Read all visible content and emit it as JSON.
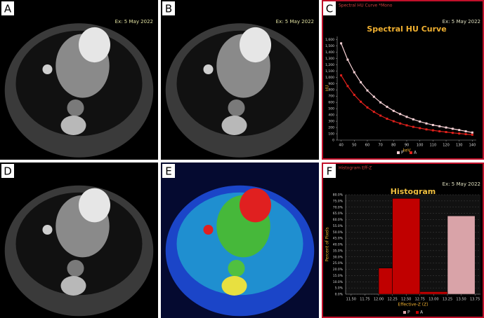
{
  "panels": [
    {
      "label": "A",
      "date": "Ex: 5 May 2022"
    },
    {
      "label": "B",
      "date": "Ex: 5 May 2022"
    },
    {
      "label": "C"
    },
    {
      "label": "D"
    },
    {
      "label": "E"
    },
    {
      "label": "F"
    }
  ],
  "chart_data": [
    {
      "type": "line",
      "header": "Spectral HU Curve *Mono",
      "date": "Ex: 5 May 2022",
      "title": "Spectral HU Curve",
      "x_label": "keV",
      "y_label": "HU",
      "x": [
        40,
        45,
        50,
        55,
        60,
        65,
        70,
        75,
        80,
        85,
        90,
        95,
        100,
        105,
        110,
        115,
        120,
        125,
        130,
        135,
        140
      ],
      "series": [
        {
          "name": "P",
          "color": "#f6d0d4",
          "values": [
            1540,
            1280,
            1080,
            920,
            790,
            690,
            600,
            530,
            465,
            415,
            370,
            330,
            295,
            265,
            240,
            220,
            200,
            180,
            160,
            140,
            120
          ]
        },
        {
          "name": "A",
          "color": "#e0201b",
          "values": [
            1030,
            860,
            720,
            610,
            520,
            450,
            390,
            340,
            300,
            265,
            235,
            210,
            190,
            170,
            155,
            140,
            128,
            115,
            105,
            95,
            85
          ]
        }
      ],
      "xlim": [
        37,
        143
      ],
      "ylim": [
        0,
        1650
      ],
      "xticks": [
        40,
        50,
        60,
        70,
        80,
        90,
        100,
        110,
        120,
        130,
        140
      ],
      "yticks": [
        0,
        100,
        200,
        300,
        400,
        500,
        600,
        700,
        800,
        900,
        {
          "value": 1000,
          "label": "1,000"
        },
        {
          "value": 1100,
          "label": "1,100"
        },
        {
          "value": 1200,
          "label": "1,200"
        },
        {
          "value": 1300,
          "label": "1,300"
        },
        {
          "value": 1400,
          "label": "1,400"
        },
        {
          "value": 1500,
          "label": "1,500"
        },
        {
          "value": 1600,
          "label": "1,600"
        }
      ],
      "grid": false
    },
    {
      "type": "histogram",
      "header": "Histogram Eff-Z",
      "date": "Ex: 5 May 2022",
      "title": "Histogram",
      "x_label": "Effective-Z (Z)",
      "y_label": "Percent of Pixels",
      "series": [
        {
          "name": "P",
          "color": "#d9a3a8",
          "bins": [
            13.25,
            13.75
          ],
          "values": [
            63
          ]
        },
        {
          "name": "A",
          "color": "#c00000",
          "bins": [
            12.0,
            12.25,
            12.75,
            13.25
          ],
          "values": [
            21,
            77,
            2
          ]
        }
      ],
      "xlim": [
        11.4,
        13.85
      ],
      "ylim": [
        0,
        80
      ],
      "xticks": [
        {
          "value": 11.5,
          "label": "11.50"
        },
        {
          "value": 11.75,
          "label": "11.75"
        },
        {
          "value": 12,
          "label": "12.00"
        },
        {
          "value": 12.25,
          "label": "12.25"
        },
        {
          "value": 12.5,
          "label": "12.50"
        },
        {
          "value": 12.75,
          "label": "12.75"
        },
        {
          "value": 13,
          "label": "13.00"
        },
        {
          "value": 13.25,
          "label": "13.25"
        },
        {
          "value": 13.5,
          "label": "13.50"
        },
        {
          "value": 13.75,
          "label": "13.75"
        }
      ],
      "yticks": [
        {
          "value": 0,
          "label": "0.0%"
        },
        {
          "value": 5,
          "label": "5.0%"
        },
        {
          "value": 10,
          "label": "10.0%"
        },
        {
          "value": 15,
          "label": "15.0%"
        },
        {
          "value": 20,
          "label": "20.0%"
        },
        {
          "value": 25,
          "label": "25.0%"
        },
        {
          "value": 30,
          "label": "30.0%"
        },
        {
          "value": 35,
          "label": "35.0%"
        },
        {
          "value": 40,
          "label": "40.0%"
        },
        {
          "value": 45,
          "label": "45.0%"
        },
        {
          "value": 50,
          "label": "50.0%"
        },
        {
          "value": 55,
          "label": "55.0%"
        },
        {
          "value": 60,
          "label": "60.0%"
        },
        {
          "value": 65,
          "label": "65.0%"
        },
        {
          "value": 70,
          "label": "70.0%"
        },
        {
          "value": 75,
          "label": "75.0%"
        },
        {
          "value": 80,
          "label": "80.0%"
        }
      ],
      "grid": true
    }
  ]
}
